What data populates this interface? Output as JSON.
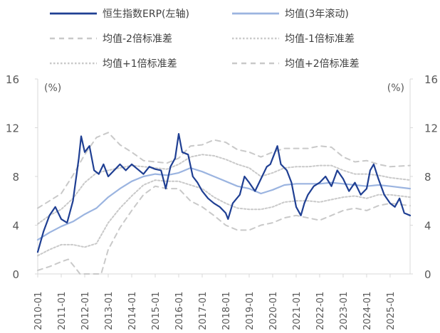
{
  "colors": {
    "erp": "#1f3f93",
    "mean": "#9bb4e0",
    "bands": "#c9c9c9",
    "axis": "#d9d9d9",
    "text": "#595959"
  },
  "chart_data": {
    "type": "line",
    "title": "",
    "x_labels": [
      "2010-01",
      "2011-01",
      "2012-01",
      "2013-01",
      "2014-01",
      "2015-01",
      "2016-01",
      "2017-01",
      "2018-01",
      "2019-01",
      "2020-01",
      "2021-01",
      "2022-01",
      "2023-01",
      "2024-01",
      "2025-01"
    ],
    "x_range": [
      2010.0,
      2025.85
    ],
    "left_axis": {
      "unit": "(%)",
      "range": [
        0,
        16
      ],
      "ticks": [
        0,
        4,
        8,
        12,
        16
      ]
    },
    "right_axis": {
      "unit": "(%)",
      "range": [
        0,
        16
      ],
      "ticks": [
        0,
        4,
        8,
        12,
        16
      ]
    },
    "grid": false,
    "legend_position": "top",
    "series": [
      {
        "name": "恒生指数ERP(左轴)",
        "style": "solid-thick",
        "points": [
          [
            2010.0,
            1.8
          ],
          [
            2010.25,
            3.5
          ],
          [
            2010.5,
            4.8
          ],
          [
            2010.75,
            5.5
          ],
          [
            2011.0,
            4.5
          ],
          [
            2011.25,
            4.2
          ],
          [
            2011.5,
            6.0
          ],
          [
            2011.75,
            9.5
          ],
          [
            2011.85,
            11.3
          ],
          [
            2012.0,
            10.0
          ],
          [
            2012.2,
            10.5
          ],
          [
            2012.4,
            8.5
          ],
          [
            2012.6,
            8.2
          ],
          [
            2012.8,
            9.0
          ],
          [
            2013.0,
            8.0
          ],
          [
            2013.3,
            8.6
          ],
          [
            2013.5,
            9.0
          ],
          [
            2013.75,
            8.5
          ],
          [
            2014.0,
            9.0
          ],
          [
            2014.25,
            8.6
          ],
          [
            2014.5,
            8.2
          ],
          [
            2014.75,
            8.8
          ],
          [
            2015.0,
            8.6
          ],
          [
            2015.25,
            8.5
          ],
          [
            2015.45,
            7.0
          ],
          [
            2015.65,
            8.8
          ],
          [
            2015.85,
            9.5
          ],
          [
            2016.0,
            11.5
          ],
          [
            2016.15,
            10.0
          ],
          [
            2016.4,
            9.8
          ],
          [
            2016.6,
            8.0
          ],
          [
            2016.8,
            7.5
          ],
          [
            2017.0,
            6.8
          ],
          [
            2017.25,
            6.2
          ],
          [
            2017.5,
            5.8
          ],
          [
            2017.75,
            5.5
          ],
          [
            2018.0,
            5.0
          ],
          [
            2018.1,
            4.5
          ],
          [
            2018.3,
            5.8
          ],
          [
            2018.6,
            6.5
          ],
          [
            2018.8,
            8.0
          ],
          [
            2019.0,
            7.5
          ],
          [
            2019.25,
            6.8
          ],
          [
            2019.5,
            7.8
          ],
          [
            2019.75,
            8.8
          ],
          [
            2019.9,
            9.0
          ],
          [
            2020.0,
            9.5
          ],
          [
            2020.2,
            10.5
          ],
          [
            2020.35,
            9.0
          ],
          [
            2020.6,
            8.5
          ],
          [
            2020.8,
            7.5
          ],
          [
            2021.0,
            5.5
          ],
          [
            2021.2,
            4.8
          ],
          [
            2021.35,
            5.8
          ],
          [
            2021.5,
            6.5
          ],
          [
            2021.75,
            7.2
          ],
          [
            2022.0,
            7.5
          ],
          [
            2022.25,
            8.0
          ],
          [
            2022.5,
            7.2
          ],
          [
            2022.75,
            8.5
          ],
          [
            2023.0,
            7.8
          ],
          [
            2023.25,
            6.8
          ],
          [
            2023.5,
            7.5
          ],
          [
            2023.75,
            6.5
          ],
          [
            2024.0,
            7.0
          ],
          [
            2024.15,
            8.5
          ],
          [
            2024.3,
            9.0
          ],
          [
            2024.5,
            7.8
          ],
          [
            2024.75,
            6.5
          ],
          [
            2025.0,
            5.8
          ],
          [
            2025.2,
            5.5
          ],
          [
            2025.4,
            6.2
          ],
          [
            2025.6,
            5.0
          ],
          [
            2025.85,
            4.8
          ]
        ]
      },
      {
        "name": "均值(3年滚动)",
        "style": "solid-light",
        "points": [
          [
            2010.0,
            2.8
          ],
          [
            2010.5,
            3.4
          ],
          [
            2011.0,
            3.9
          ],
          [
            2011.5,
            4.3
          ],
          [
            2012.0,
            4.9
          ],
          [
            2012.5,
            5.4
          ],
          [
            2013.0,
            6.3
          ],
          [
            2013.5,
            7.0
          ],
          [
            2014.0,
            7.6
          ],
          [
            2014.5,
            8.0
          ],
          [
            2015.0,
            8.2
          ],
          [
            2015.5,
            8.1
          ],
          [
            2016.0,
            8.3
          ],
          [
            2016.5,
            8.7
          ],
          [
            2017.0,
            8.4
          ],
          [
            2017.5,
            8.0
          ],
          [
            2018.0,
            7.6
          ],
          [
            2018.5,
            7.2
          ],
          [
            2019.0,
            7.0
          ],
          [
            2019.5,
            6.6
          ],
          [
            2020.0,
            6.9
          ],
          [
            2020.5,
            7.3
          ],
          [
            2021.0,
            7.4
          ],
          [
            2021.5,
            7.4
          ],
          [
            2022.0,
            7.4
          ],
          [
            2022.5,
            7.5
          ],
          [
            2023.0,
            7.4
          ],
          [
            2023.5,
            7.3
          ],
          [
            2024.0,
            7.2
          ],
          [
            2024.5,
            7.3
          ],
          [
            2025.0,
            7.2
          ],
          [
            2025.85,
            7.0
          ]
        ]
      },
      {
        "name": "均值-2倍标准差",
        "style": "dash-long",
        "points": [
          [
            2010.0,
            0.3
          ],
          [
            2010.5,
            0.6
          ],
          [
            2011.0,
            1.0
          ],
          [
            2011.3,
            1.2
          ],
          [
            2011.6,
            0.5
          ],
          [
            2011.8,
            0.0
          ],
          [
            2012.0,
            -0.2
          ],
          [
            2012.5,
            -0.4
          ],
          [
            2012.7,
            0.0
          ],
          [
            2013.0,
            2.0
          ],
          [
            2013.5,
            3.8
          ],
          [
            2014.0,
            5.2
          ],
          [
            2014.5,
            6.5
          ],
          [
            2015.0,
            7.2
          ],
          [
            2015.5,
            7.0
          ],
          [
            2016.0,
            7.0
          ],
          [
            2016.5,
            6.0
          ],
          [
            2017.0,
            5.5
          ],
          [
            2017.5,
            4.8
          ],
          [
            2018.0,
            4.0
          ],
          [
            2018.5,
            3.6
          ],
          [
            2019.0,
            3.6
          ],
          [
            2019.5,
            4.0
          ],
          [
            2020.0,
            4.2
          ],
          [
            2020.5,
            4.6
          ],
          [
            2021.0,
            4.8
          ],
          [
            2021.5,
            4.6
          ],
          [
            2022.0,
            4.4
          ],
          [
            2022.5,
            4.8
          ],
          [
            2023.0,
            5.2
          ],
          [
            2023.5,
            5.4
          ],
          [
            2024.0,
            5.2
          ],
          [
            2024.5,
            5.6
          ],
          [
            2025.0,
            5.8
          ],
          [
            2025.85,
            5.6
          ]
        ]
      },
      {
        "name": "均值-1倍标准差",
        "style": "dot-dense",
        "points": [
          [
            2010.0,
            1.5
          ],
          [
            2010.5,
            2.0
          ],
          [
            2011.0,
            2.4
          ],
          [
            2011.5,
            2.4
          ],
          [
            2012.0,
            2.2
          ],
          [
            2012.5,
            2.5
          ],
          [
            2013.0,
            4.2
          ],
          [
            2013.5,
            5.4
          ],
          [
            2014.0,
            6.4
          ],
          [
            2014.5,
            7.3
          ],
          [
            2015.0,
            7.7
          ],
          [
            2015.5,
            7.6
          ],
          [
            2016.0,
            7.6
          ],
          [
            2016.5,
            7.3
          ],
          [
            2017.0,
            7.0
          ],
          [
            2017.5,
            6.3
          ],
          [
            2018.0,
            5.8
          ],
          [
            2018.5,
            5.4
          ],
          [
            2019.0,
            5.3
          ],
          [
            2019.5,
            5.3
          ],
          [
            2020.0,
            5.5
          ],
          [
            2020.5,
            5.9
          ],
          [
            2021.0,
            6.0
          ],
          [
            2021.5,
            6.0
          ],
          [
            2022.0,
            5.9
          ],
          [
            2022.5,
            6.1
          ],
          [
            2023.0,
            6.3
          ],
          [
            2023.5,
            6.4
          ],
          [
            2024.0,
            6.2
          ],
          [
            2024.5,
            6.5
          ],
          [
            2025.0,
            6.5
          ],
          [
            2025.85,
            6.3
          ]
        ]
      },
      {
        "name": "均值+1倍标准差",
        "style": "dot-dense",
        "points": [
          [
            2010.0,
            4.1
          ],
          [
            2010.5,
            4.8
          ],
          [
            2011.0,
            5.3
          ],
          [
            2011.5,
            6.2
          ],
          [
            2012.0,
            7.5
          ],
          [
            2012.5,
            8.3
          ],
          [
            2013.0,
            8.5
          ],
          [
            2013.5,
            8.7
          ],
          [
            2014.0,
            8.9
          ],
          [
            2014.5,
            8.8
          ],
          [
            2015.0,
            8.7
          ],
          [
            2015.5,
            8.6
          ],
          [
            2016.0,
            9.0
          ],
          [
            2016.5,
            9.6
          ],
          [
            2017.0,
            9.8
          ],
          [
            2017.5,
            9.7
          ],
          [
            2018.0,
            9.4
          ],
          [
            2018.5,
            9.0
          ],
          [
            2019.0,
            8.7
          ],
          [
            2019.5,
            8.0
          ],
          [
            2020.0,
            8.3
          ],
          [
            2020.5,
            8.7
          ],
          [
            2021.0,
            8.8
          ],
          [
            2021.5,
            8.8
          ],
          [
            2022.0,
            8.9
          ],
          [
            2022.5,
            8.9
          ],
          [
            2023.0,
            8.5
          ],
          [
            2023.5,
            8.2
          ],
          [
            2024.0,
            8.2
          ],
          [
            2024.5,
            8.1
          ],
          [
            2025.0,
            7.9
          ],
          [
            2025.85,
            7.7
          ]
        ]
      },
      {
        "name": "均值+2倍标准差",
        "style": "dash-long",
        "points": [
          [
            2010.0,
            5.4
          ],
          [
            2010.5,
            6.0
          ],
          [
            2011.0,
            6.6
          ],
          [
            2011.5,
            8.1
          ],
          [
            2012.0,
            9.8
          ],
          [
            2012.5,
            11.2
          ],
          [
            2013.0,
            11.6
          ],
          [
            2013.5,
            10.6
          ],
          [
            2014.0,
            10.0
          ],
          [
            2014.5,
            9.3
          ],
          [
            2015.0,
            9.2
          ],
          [
            2015.5,
            9.1
          ],
          [
            2016.0,
            9.5
          ],
          [
            2016.5,
            10.5
          ],
          [
            2017.0,
            10.6
          ],
          [
            2017.5,
            11.0
          ],
          [
            2018.0,
            10.8
          ],
          [
            2018.5,
            10.2
          ],
          [
            2019.0,
            10.0
          ],
          [
            2019.5,
            9.6
          ],
          [
            2020.0,
            10.0
          ],
          [
            2020.5,
            10.3
          ],
          [
            2021.0,
            10.3
          ],
          [
            2021.5,
            10.3
          ],
          [
            2022.0,
            10.5
          ],
          [
            2022.5,
            10.4
          ],
          [
            2023.0,
            9.6
          ],
          [
            2023.5,
            9.2
          ],
          [
            2024.0,
            9.3
          ],
          [
            2024.5,
            9.0
          ],
          [
            2025.0,
            8.8
          ],
          [
            2025.85,
            8.9
          ]
        ]
      }
    ]
  }
}
